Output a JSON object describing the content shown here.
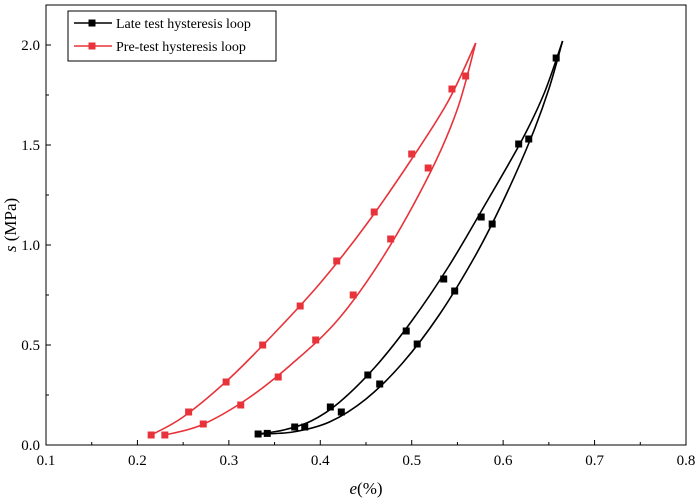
{
  "chart_data": {
    "type": "line",
    "xlabel_symbol": "e",
    "xlabel_unit": "(%)",
    "ylabel_symbol": "s",
    "ylabel_unit": " (MPa)",
    "xlim": [
      0.1,
      0.8
    ],
    "ylim": [
      0,
      2.2
    ],
    "xticks": [
      0.1,
      0.2,
      0.3,
      0.4,
      0.5,
      0.6,
      0.7,
      0.8
    ],
    "xtick_labels": [
      "0.1",
      "0.2",
      "0.3",
      "0.4",
      "0.5",
      "0.6",
      "0.7",
      "0.8"
    ],
    "yticks": [
      0,
      0.5,
      1.0,
      1.5,
      2.0
    ],
    "ytick_labels": [
      "0.0",
      "0.5",
      "1.0",
      "1.5",
      "2.0"
    ],
    "grid": false,
    "legend_position": "top-left",
    "series": [
      {
        "name": "Late test hysteresis loop",
        "color": "#000000",
        "marker": "square",
        "branches": [
          {
            "curve": [
              [
                0.332,
                0.055
              ],
              [
                0.36,
                0.075
              ],
              [
                0.39,
                0.12
              ],
              [
                0.42,
                0.21
              ],
              [
                0.46,
                0.39
              ],
              [
                0.5,
                0.62
              ],
              [
                0.54,
                0.89
              ],
              [
                0.58,
                1.2
              ],
              [
                0.62,
                1.52
              ],
              [
                0.645,
                1.76
              ],
              [
                0.665,
                2.02
              ]
            ],
            "markers": [
              [
                0.332,
                0.055
              ],
              [
                0.372,
                0.09
              ],
              [
                0.411,
                0.19
              ],
              [
                0.452,
                0.35
              ],
              [
                0.494,
                0.57
              ],
              [
                0.535,
                0.83
              ],
              [
                0.576,
                1.14
              ],
              [
                0.617,
                1.505
              ],
              [
                0.658,
                1.935
              ]
            ]
          },
          {
            "curve": [
              [
                0.332,
                0.055
              ],
              [
                0.37,
                0.065
              ],
              [
                0.41,
                0.115
              ],
              [
                0.45,
                0.23
              ],
              [
                0.49,
                0.41
              ],
              [
                0.53,
                0.65
              ],
              [
                0.57,
                0.95
              ],
              [
                0.6,
                1.22
              ],
              [
                0.63,
                1.53
              ],
              [
                0.65,
                1.78
              ],
              [
                0.665,
                2.02
              ]
            ],
            "markers": [
              [
                0.342,
                0.058
              ],
              [
                0.383,
                0.09
              ],
              [
                0.423,
                0.165
              ],
              [
                0.465,
                0.305
              ],
              [
                0.506,
                0.505
              ],
              [
                0.547,
                0.77
              ],
              [
                0.588,
                1.105
              ],
              [
                0.628,
                1.53
              ]
            ]
          }
        ]
      },
      {
        "name": "Pre-test hysteresis loop",
        "color": "#e8333a",
        "marker": "square",
        "branches": [
          {
            "curve": [
              [
                0.215,
                0.05
              ],
              [
                0.25,
                0.14
              ],
              [
                0.3,
                0.33
              ],
              [
                0.35,
                0.56
              ],
              [
                0.4,
                0.81
              ],
              [
                0.45,
                1.1
              ],
              [
                0.5,
                1.43
              ],
              [
                0.54,
                1.72
              ],
              [
                0.57,
                2.01
              ]
            ],
            "markers": [
              [
                0.215,
                0.05
              ],
              [
                0.256,
                0.165
              ],
              [
                0.297,
                0.315
              ],
              [
                0.337,
                0.5
              ],
              [
                0.378,
                0.695
              ],
              [
                0.418,
                0.92
              ],
              [
                0.459,
                1.165
              ],
              [
                0.5,
                1.455
              ],
              [
                0.544,
                1.78
              ]
            ]
          },
          {
            "curve": [
              [
                0.23,
                0.05
              ],
              [
                0.27,
                0.1
              ],
              [
                0.32,
                0.23
              ],
              [
                0.37,
                0.41
              ],
              [
                0.42,
                0.63
              ],
              [
                0.47,
                0.95
              ],
              [
                0.52,
                1.36
              ],
              [
                0.55,
                1.68
              ],
              [
                0.57,
                2.01
              ]
            ],
            "markers": [
              [
                0.23,
                0.05
              ],
              [
                0.272,
                0.105
              ],
              [
                0.313,
                0.2
              ],
              [
                0.354,
                0.34
              ],
              [
                0.395,
                0.525
              ],
              [
                0.436,
                0.75
              ],
              [
                0.477,
                1.03
              ],
              [
                0.518,
                1.385
              ],
              [
                0.559,
                1.845
              ]
            ]
          }
        ]
      }
    ]
  }
}
